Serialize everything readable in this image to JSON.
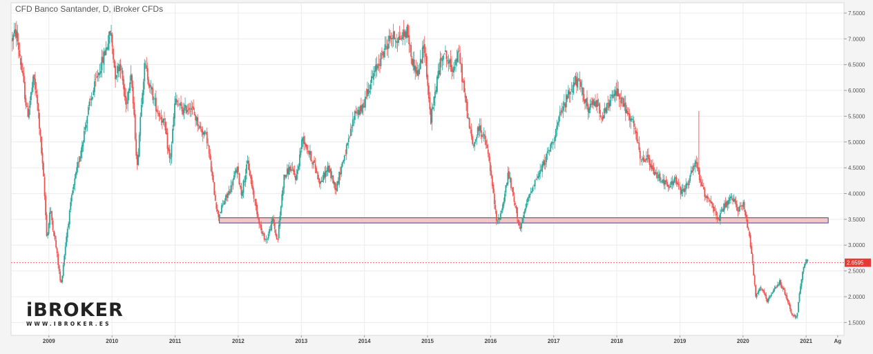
{
  "chart_data": {
    "type": "candlestick",
    "title": "CFD Banco Santander, D, iBroker CFDs",
    "x_ticks": [
      "2009",
      "2010",
      "2011",
      "2012",
      "2013",
      "2014",
      "2015",
      "2016",
      "2017",
      "2018",
      "2019",
      "2020",
      "2021",
      "Ag"
    ],
    "y_ticks": [
      "7.5000",
      "7.0000",
      "6.5000",
      "6.0000",
      "5.5000",
      "5.0000",
      "4.5000",
      "4.0000",
      "3.5000",
      "3.0000",
      "2.5000",
      "2.0000",
      "1.5000"
    ],
    "ylim": [
      1.25,
      7.7
    ],
    "xlim": [
      2008.4,
      2021.6
    ],
    "last_price": 2.6595,
    "last_price_label": "2.6595",
    "grid": true,
    "colors": {
      "up": "#26a69a",
      "down": "#ef5350",
      "zone_fill": "#f4c7c3",
      "zone_border": "#3f3f9a",
      "price_line": "#ef5350"
    },
    "support_zone": {
      "low": 3.43,
      "high": 3.53,
      "x_start": 2011.7,
      "x_end": 2021.35
    },
    "price_path": [
      [
        2008.42,
        7.0
      ],
      [
        2008.48,
        7.15
      ],
      [
        2008.58,
        6.3
      ],
      [
        2008.66,
        5.5
      ],
      [
        2008.76,
        6.25
      ],
      [
        2008.83,
        5.6
      ],
      [
        2008.92,
        4.2
      ],
      [
        2008.97,
        3.1
      ],
      [
        2009.02,
        3.7
      ],
      [
        2009.12,
        2.9
      ],
      [
        2009.19,
        2.2
      ],
      [
        2009.28,
        3.2
      ],
      [
        2009.37,
        4.0
      ],
      [
        2009.5,
        4.8
      ],
      [
        2009.62,
        5.6
      ],
      [
        2009.75,
        6.2
      ],
      [
        2009.88,
        6.7
      ],
      [
        2009.98,
        7.15
      ],
      [
        2010.05,
        6.3
      ],
      [
        2010.13,
        6.55
      ],
      [
        2010.22,
        5.7
      ],
      [
        2010.3,
        6.4
      ],
      [
        2010.4,
        4.5
      ],
      [
        2010.47,
        5.9
      ],
      [
        2010.52,
        6.5
      ],
      [
        2010.62,
        6.0
      ],
      [
        2010.72,
        5.6
      ],
      [
        2010.82,
        5.4
      ],
      [
        2010.92,
        4.6
      ],
      [
        2011.0,
        5.8
      ],
      [
        2011.12,
        5.6
      ],
      [
        2011.25,
        5.7
      ],
      [
        2011.38,
        5.3
      ],
      [
        2011.5,
        5.1
      ],
      [
        2011.6,
        4.2
      ],
      [
        2011.68,
        3.55
      ],
      [
        2011.78,
        3.85
      ],
      [
        2011.88,
        4.1
      ],
      [
        2011.98,
        4.5
      ],
      [
        2012.05,
        4.0
      ],
      [
        2012.15,
        4.6
      ],
      [
        2012.27,
        3.8
      ],
      [
        2012.38,
        3.2
      ],
      [
        2012.45,
        3.1
      ],
      [
        2012.55,
        3.5
      ],
      [
        2012.62,
        3.05
      ],
      [
        2012.72,
        4.3
      ],
      [
        2012.82,
        4.5
      ],
      [
        2012.92,
        4.3
      ],
      [
        2013.02,
        5.1
      ],
      [
        2013.12,
        4.8
      ],
      [
        2013.22,
        4.5
      ],
      [
        2013.3,
        4.2
      ],
      [
        2013.42,
        4.5
      ],
      [
        2013.55,
        4.1
      ],
      [
        2013.65,
        4.6
      ],
      [
        2013.75,
        5.0
      ],
      [
        2013.85,
        5.6
      ],
      [
        2013.95,
        5.6
      ],
      [
        2014.05,
        6.0
      ],
      [
        2014.18,
        6.4
      ],
      [
        2014.28,
        6.7
      ],
      [
        2014.42,
        7.05
      ],
      [
        2014.55,
        7.0
      ],
      [
        2014.68,
        7.15
      ],
      [
        2014.75,
        6.6
      ],
      [
        2014.85,
        6.3
      ],
      [
        2014.95,
        6.9
      ],
      [
        2015.05,
        5.4
      ],
      [
        2015.15,
        6.2
      ],
      [
        2015.25,
        6.8
      ],
      [
        2015.38,
        6.4
      ],
      [
        2015.5,
        6.7
      ],
      [
        2015.6,
        5.8
      ],
      [
        2015.65,
        5.4
      ],
      [
        2015.72,
        4.9
      ],
      [
        2015.82,
        5.3
      ],
      [
        2015.92,
        5.0
      ],
      [
        2015.98,
        4.6
      ],
      [
        2016.05,
        3.9
      ],
      [
        2016.1,
        3.4
      ],
      [
        2016.18,
        3.7
      ],
      [
        2016.28,
        4.4
      ],
      [
        2016.38,
        3.8
      ],
      [
        2016.47,
        3.3
      ],
      [
        2016.57,
        3.8
      ],
      [
        2016.68,
        4.2
      ],
      [
        2016.78,
        4.4
      ],
      [
        2016.88,
        4.7
      ],
      [
        2016.98,
        5.0
      ],
      [
        2017.1,
        5.5
      ],
      [
        2017.22,
        5.9
      ],
      [
        2017.35,
        6.2
      ],
      [
        2017.45,
        6.0
      ],
      [
        2017.55,
        5.6
      ],
      [
        2017.65,
        5.8
      ],
      [
        2017.78,
        5.5
      ],
      [
        2017.9,
        5.8
      ],
      [
        2018.0,
        6.0
      ],
      [
        2018.08,
        5.8
      ],
      [
        2018.18,
        5.5
      ],
      [
        2018.28,
        5.3
      ],
      [
        2018.38,
        4.6
      ],
      [
        2018.48,
        4.7
      ],
      [
        2018.58,
        4.4
      ],
      [
        2018.7,
        4.3
      ],
      [
        2018.82,
        4.1
      ],
      [
        2018.92,
        4.3
      ],
      [
        2019.02,
        4.0
      ],
      [
        2019.12,
        4.2
      ],
      [
        2019.25,
        4.6
      ],
      [
        2019.38,
        4.0
      ],
      [
        2019.5,
        3.85
      ],
      [
        2019.6,
        3.45
      ],
      [
        2019.7,
        3.75
      ],
      [
        2019.82,
        3.9
      ],
      [
        2019.92,
        3.7
      ],
      [
        2020.0,
        3.8
      ],
      [
        2020.1,
        3.2
      ],
      [
        2020.15,
        2.7
      ],
      [
        2020.2,
        2.0
      ],
      [
        2020.28,
        2.2
      ],
      [
        2020.38,
        1.9
      ],
      [
        2020.48,
        2.1
      ],
      [
        2020.58,
        2.3
      ],
      [
        2020.68,
        2.0
      ],
      [
        2020.78,
        1.65
      ],
      [
        2020.85,
        1.6
      ],
      [
        2020.9,
        2.1
      ],
      [
        2020.95,
        2.5
      ],
      [
        2021.0,
        2.7
      ],
      [
        2021.03,
        2.66
      ]
    ],
    "spikes": [
      {
        "x": 2019.3,
        "high": 5.6
      }
    ]
  },
  "logo": {
    "main": "iBROKER",
    "sub": "WWW.IBROKER.ES"
  }
}
